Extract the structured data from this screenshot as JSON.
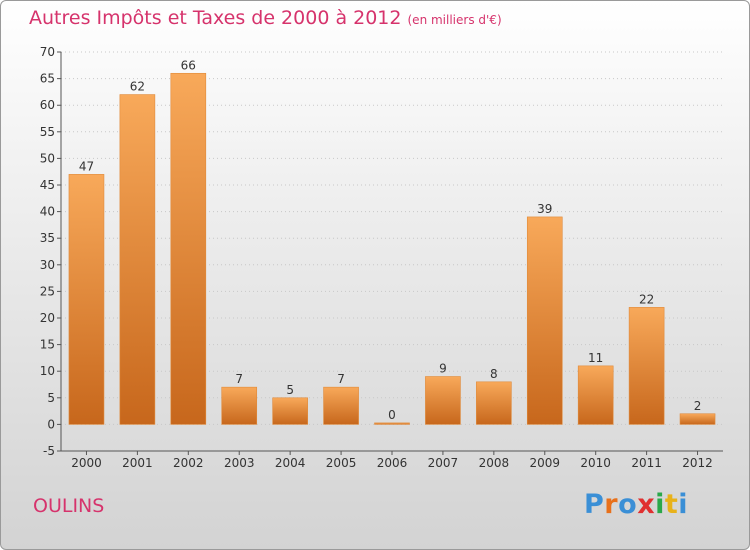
{
  "title": "Autres Impôts et Taxes de 2000 à 2012",
  "unit_note": "(en milliers d'€)",
  "commune": "OULINS",
  "brand": {
    "letters": [
      "P",
      "r",
      "o",
      "x",
      "i",
      "t",
      "i"
    ],
    "colors": [
      "#3a8fd6",
      "#e8701a",
      "#3a8fd6",
      "#e03030",
      "#2aa84a",
      "#e8b21a",
      "#3a8fd6"
    ]
  },
  "colors": {
    "bar_light": "#f8a95a",
    "bar_dark": "#c7671c",
    "title": "#d6336c",
    "grid": "#c8c8c8"
  },
  "chart_data": {
    "type": "bar",
    "categories": [
      "2000",
      "2001",
      "2002",
      "2003",
      "2004",
      "2005",
      "2006",
      "2007",
      "2008",
      "2009",
      "2010",
      "2011",
      "2012"
    ],
    "values": [
      47,
      62,
      66,
      7,
      5,
      7,
      0,
      9,
      8,
      39,
      11,
      22,
      2
    ],
    "ylim": [
      -5,
      70
    ],
    "yticks": [
      -5,
      0,
      5,
      10,
      15,
      20,
      25,
      30,
      35,
      40,
      45,
      50,
      55,
      60,
      65,
      70
    ],
    "grid": true,
    "data_labels": true,
    "title": "Autres Impôts et Taxes de 2000 à 2012",
    "xlabel": "",
    "ylabel": ""
  }
}
